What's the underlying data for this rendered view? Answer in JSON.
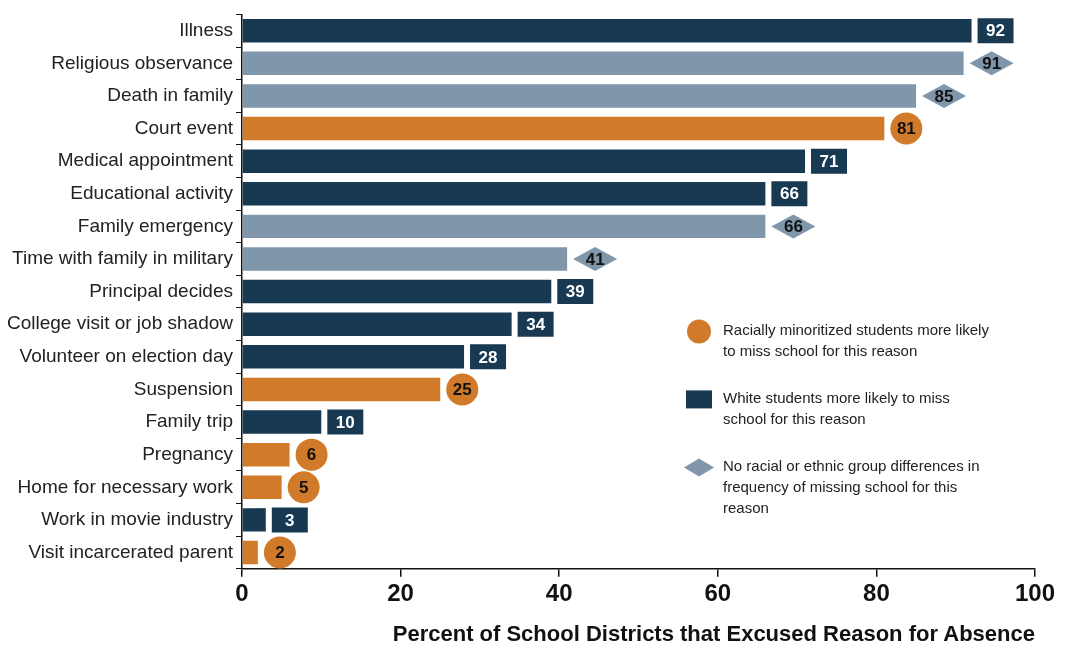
{
  "chart_data": {
    "type": "bar",
    "orientation": "horizontal",
    "xlabel": "Percent of School Districts that Excused Reason for Absence",
    "categories": [
      "Illness",
      "Religious observance",
      "Death in family",
      "Court event",
      "Medical appointment",
      "Educational activity",
      "Family emergency",
      "Time with family in military",
      "Principal decides",
      "College visit or job shadow",
      "Volunteer on election day",
      "Suspension",
      "Family trip",
      "Pregnancy",
      "Home for necessary work",
      "Work in movie industry",
      "Visit incarcerated parent"
    ],
    "series": [
      {
        "name": "Racially minoritized students more likely to miss school for this reason",
        "color": "#d07a2a",
        "marker": "circle",
        "values": [
          null,
          null,
          null,
          81,
          null,
          null,
          null,
          null,
          null,
          null,
          null,
          25,
          null,
          6,
          5,
          null,
          2
        ]
      },
      {
        "name": "White students more likely to miss school for this reason",
        "color": "#173a52",
        "marker": "square",
        "values": [
          92,
          null,
          null,
          null,
          71,
          66,
          null,
          null,
          39,
          34,
          28,
          null,
          10,
          null,
          null,
          3,
          null
        ]
      },
      {
        "name": "No racial or ethnic group differences in frequency of missing school for this reason",
        "color": "#8096aa",
        "marker": "diamond",
        "values": [
          null,
          91,
          85,
          null,
          null,
          null,
          66,
          41,
          null,
          null,
          null,
          null,
          null,
          null,
          null,
          null,
          null
        ]
      }
    ],
    "xlim": [
      0,
      100
    ],
    "xticks": [
      0,
      20,
      40,
      60,
      80,
      100
    ],
    "data_labels": true,
    "legend": "right"
  }
}
